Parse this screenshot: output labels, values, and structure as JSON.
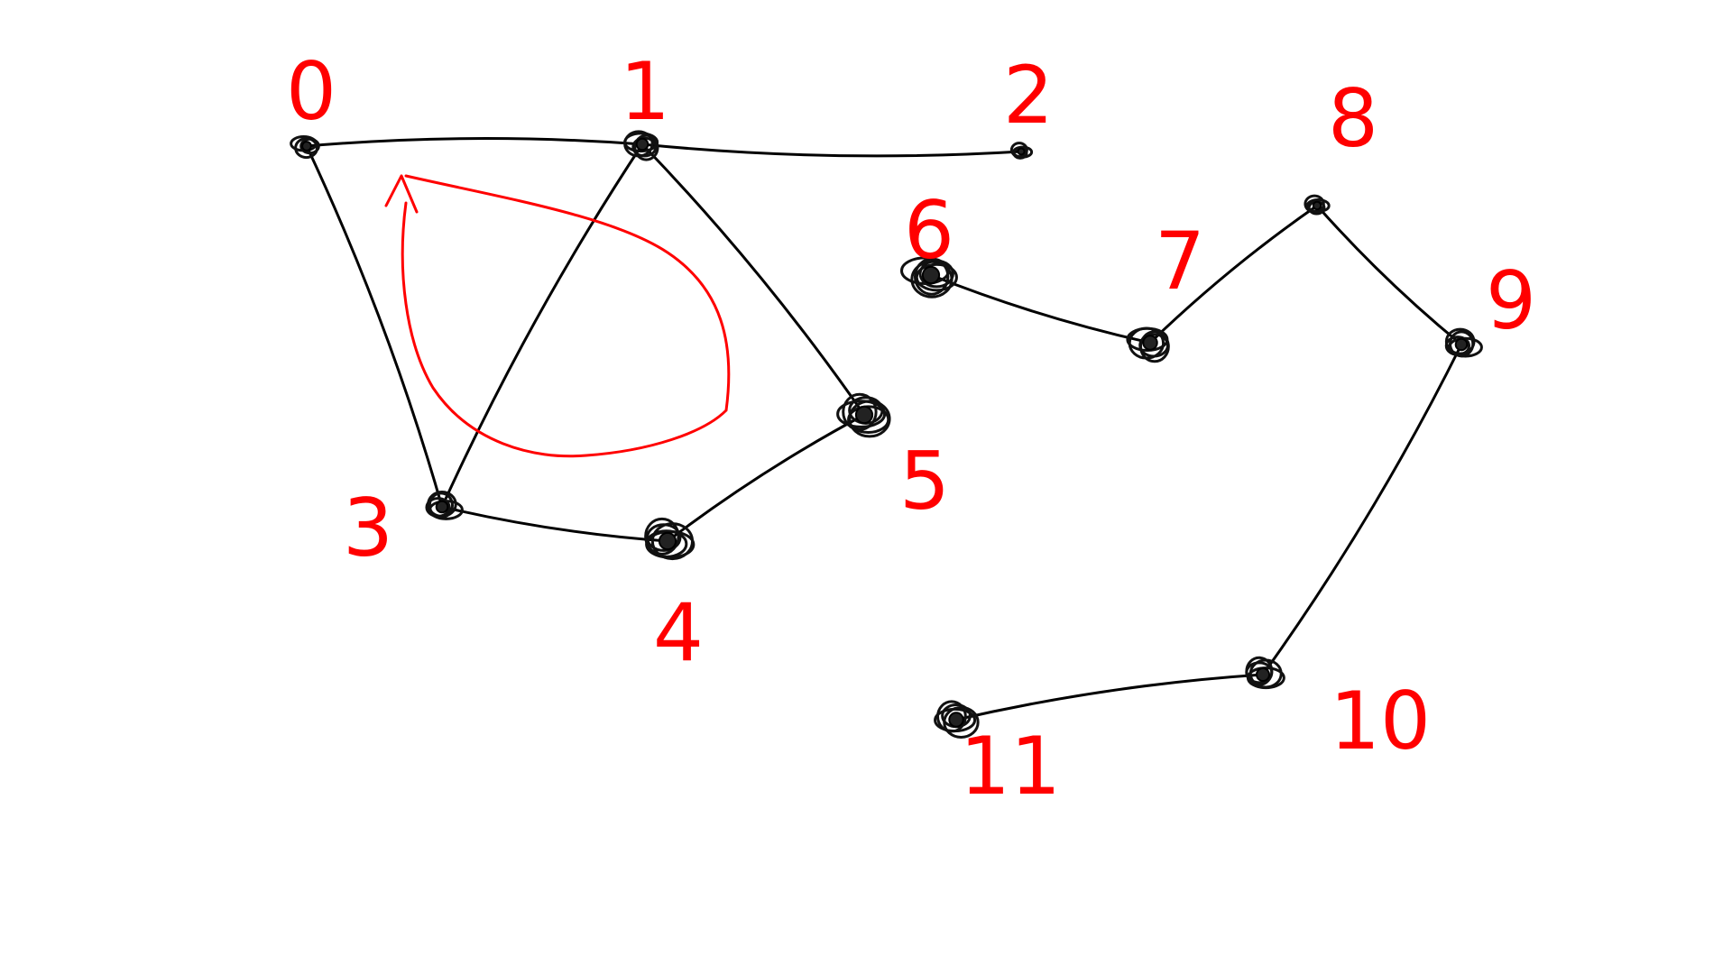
{
  "graph": {
    "stroke_color": "#000000",
    "label_color": "#ff0000",
    "nodes": [
      {
        "id": "node-0",
        "label": "0"
      },
      {
        "id": "node-1",
        "label": "1"
      },
      {
        "id": "node-2",
        "label": "2"
      },
      {
        "id": "node-3",
        "label": "3"
      },
      {
        "id": "node-4",
        "label": "4"
      },
      {
        "id": "node-5",
        "label": "5"
      },
      {
        "id": "node-6",
        "label": "6"
      },
      {
        "id": "node-7",
        "label": "7"
      },
      {
        "id": "node-8",
        "label": "8"
      },
      {
        "id": "node-9",
        "label": "9"
      },
      {
        "id": "node-10",
        "label": "10"
      },
      {
        "id": "node-11",
        "label": "11"
      }
    ],
    "edges": [
      [
        "0",
        "1"
      ],
      [
        "1",
        "2"
      ],
      [
        "0",
        "3"
      ],
      [
        "1",
        "3"
      ],
      [
        "1",
        "5"
      ],
      [
        "3",
        "4"
      ],
      [
        "4",
        "5"
      ],
      [
        "6",
        "7"
      ],
      [
        "7",
        "8"
      ],
      [
        "8",
        "9"
      ],
      [
        "9",
        "10"
      ],
      [
        "10",
        "11"
      ]
    ],
    "cycle_annotation": {
      "color": "#ff0000",
      "nodes": [
        "0",
        "1",
        "3"
      ],
      "arrow": "true"
    }
  }
}
